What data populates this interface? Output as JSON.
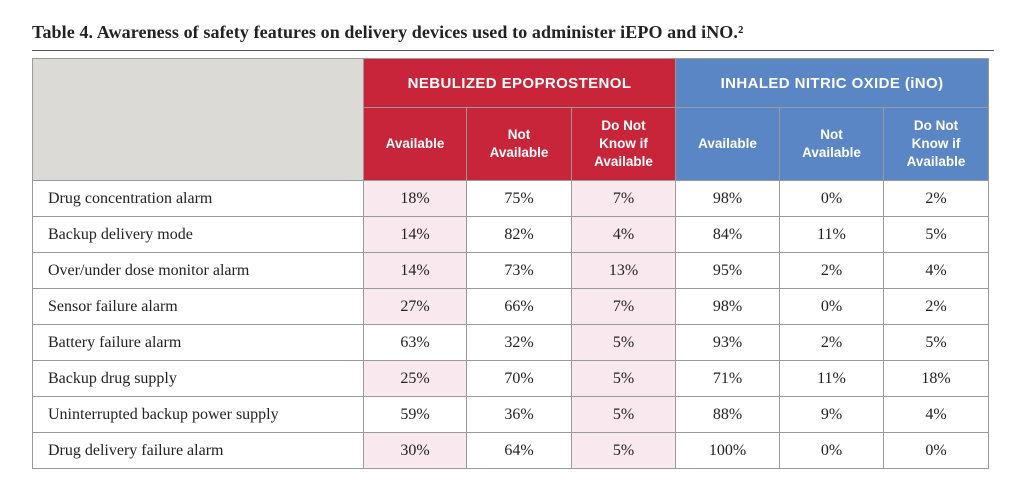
{
  "caption": "Table 4.  Awareness of safety features on delivery devices used to administer iEPO and iNO.²",
  "groups": {
    "epo": "NEBULIZED EPOPROSTENOL",
    "ino": "INHALED NITRIC OXIDE (iNO)"
  },
  "subheaders": {
    "available": "Available",
    "not_available_1": "Not",
    "not_available_2": "Available",
    "dnk_1": "Do Not",
    "dnk_2": "Know if",
    "dnk_3": "Available"
  },
  "colors": {
    "epo_header": "#c8243a",
    "ino_header": "#5b86c5",
    "highlight": "#f9e9ef",
    "corner": "#dcdad6"
  },
  "rows": [
    {
      "label": "Drug concentration alarm",
      "epo": [
        "18%",
        "75%",
        "7%"
      ],
      "ino": [
        "98%",
        "0%",
        "2%"
      ]
    },
    {
      "label": "Backup delivery mode",
      "epo": [
        "14%",
        "82%",
        "4%"
      ],
      "ino": [
        "84%",
        "11%",
        "5%"
      ]
    },
    {
      "label": "Over/under dose monitor alarm",
      "epo": [
        "14%",
        "73%",
        "13%"
      ],
      "ino": [
        "95%",
        "2%",
        "4%"
      ]
    },
    {
      "label": "Sensor failure alarm",
      "epo": [
        "27%",
        "66%",
        "7%"
      ],
      "ino": [
        "98%",
        "0%",
        "2%"
      ]
    },
    {
      "label": "Battery failure alarm",
      "epo": [
        "63%",
        "32%",
        "5%"
      ],
      "ino": [
        "93%",
        "2%",
        "5%"
      ]
    },
    {
      "label": "Backup drug supply",
      "epo": [
        "25%",
        "70%",
        "5%"
      ],
      "ino": [
        "71%",
        "11%",
        "18%"
      ]
    },
    {
      "label": "Uninterrupted backup power supply",
      "epo": [
        "59%",
        "36%",
        "5%"
      ],
      "ino": [
        "88%",
        "9%",
        "4%"
      ]
    },
    {
      "label": "Drug delivery failure alarm",
      "epo": [
        "30%",
        "64%",
        "5%"
      ],
      "ino": [
        "100%",
        "0%",
        "0%"
      ]
    }
  ]
}
